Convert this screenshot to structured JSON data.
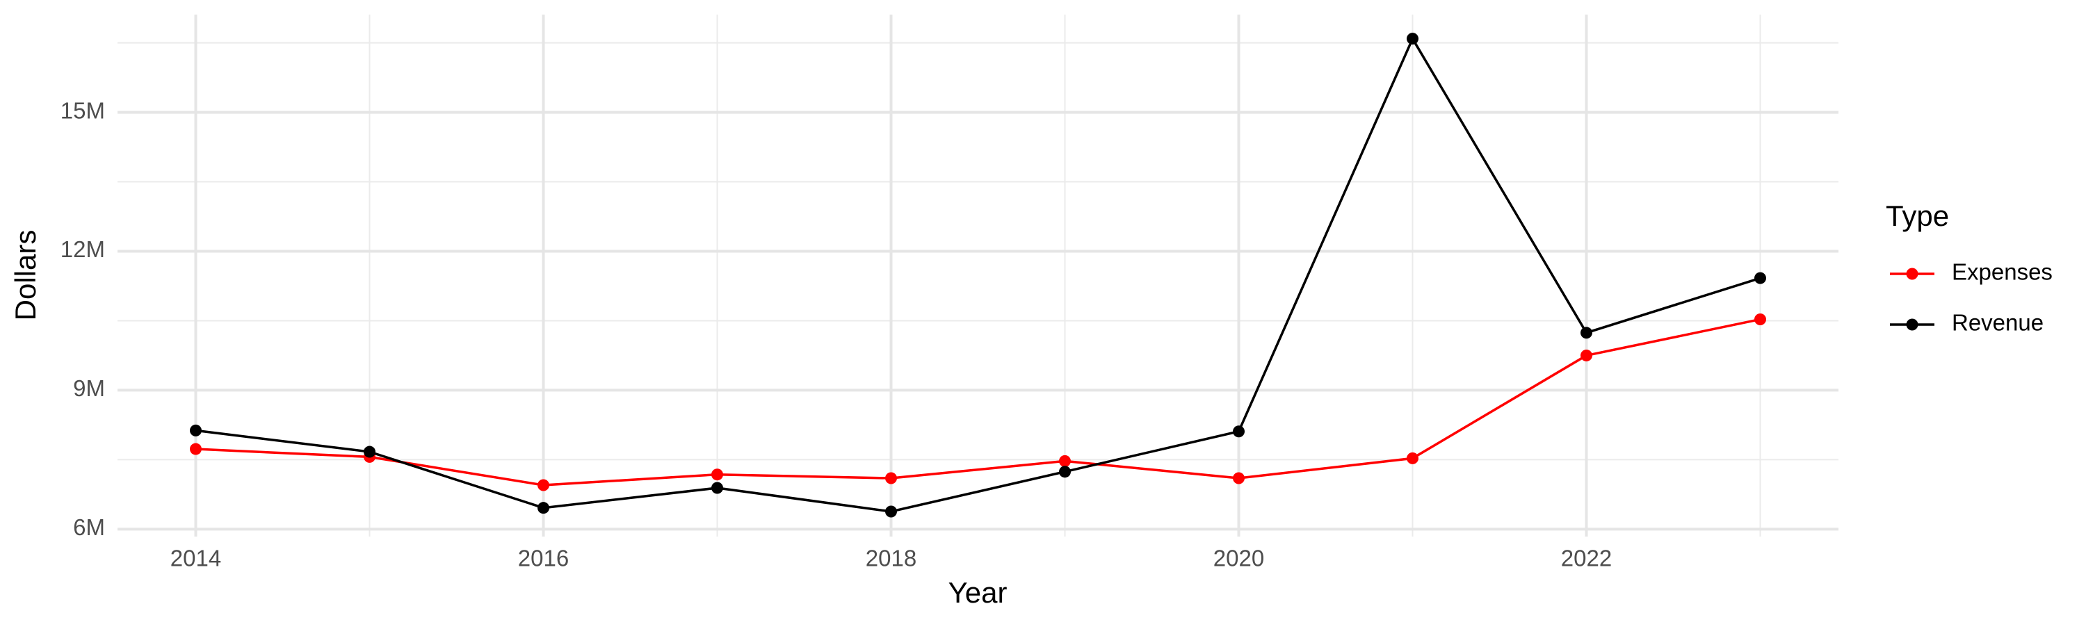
{
  "chart_data": {
    "type": "line",
    "x_label": "Year",
    "y_label": "Dollars",
    "legend_title": "Type",
    "x": [
      2014,
      2015,
      2016,
      2017,
      2018,
      2019,
      2020,
      2021,
      2022,
      2023
    ],
    "series": [
      {
        "name": "Expenses",
        "color": "#ff0000",
        "values": [
          7730000,
          7560000,
          6950000,
          7180000,
          7100000,
          7470000,
          7100000,
          7530000,
          9750000,
          10530000
        ]
      },
      {
        "name": "Revenue",
        "color": "#000000",
        "values": [
          8130000,
          7670000,
          6460000,
          6890000,
          6380000,
          7240000,
          8110000,
          16590000,
          10240000,
          11420000
        ]
      }
    ],
    "xlim": [
      2013.55,
      2023.45
    ],
    "ylim": [
      5840000,
      17110000
    ],
    "xticks": [
      2014,
      2016,
      2018,
      2020,
      2022
    ],
    "yticks": [
      {
        "value": 6000000,
        "label": "6M"
      },
      {
        "value": 9000000,
        "label": "9M"
      },
      {
        "value": 12000000,
        "label": "12M"
      },
      {
        "value": 15000000,
        "label": "15M"
      }
    ],
    "x_minor_grid": [
      2015,
      2017,
      2019,
      2021,
      2023
    ],
    "y_minor_grid": [
      7500000,
      10500000,
      13500000,
      16500000
    ],
    "grid": true,
    "legend_position": "right"
  }
}
